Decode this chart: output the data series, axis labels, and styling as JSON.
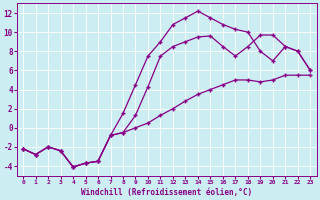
{
  "xlabel": "Windchill (Refroidissement éolien,°C)",
  "bg_color": "#cceef2",
  "grid_color": "#ffffff",
  "line_color": "#880088",
  "xlim": [
    -0.5,
    23.5
  ],
  "ylim": [
    -5,
    13
  ],
  "xticks": [
    0,
    1,
    2,
    3,
    4,
    5,
    6,
    7,
    8,
    9,
    10,
    11,
    12,
    13,
    14,
    15,
    16,
    17,
    18,
    19,
    20,
    21,
    22,
    23
  ],
  "yticks": [
    -4,
    -2,
    0,
    2,
    4,
    6,
    8,
    10,
    12
  ],
  "line1_x": [
    0,
    1,
    2,
    3,
    4,
    5,
    6,
    7,
    8,
    9,
    10,
    11,
    12,
    13,
    14,
    15,
    16,
    17,
    18,
    19,
    20,
    21,
    22,
    23
  ],
  "line1_y": [
    -2.2,
    -2.8,
    -2.0,
    -2.4,
    -4.1,
    -3.7,
    -3.5,
    -0.8,
    -0.5,
    1.3,
    4.3,
    7.5,
    8.5,
    9.0,
    9.5,
    9.6,
    8.5,
    7.5,
    8.5,
    9.7,
    9.7,
    8.5,
    8.0,
    6.0
  ],
  "line2_x": [
    0,
    1,
    2,
    3,
    4,
    5,
    6,
    7,
    8,
    9,
    10,
    11,
    12,
    13,
    14,
    15,
    16,
    17,
    18,
    19,
    20,
    21,
    22,
    23
  ],
  "line2_y": [
    -2.2,
    -2.8,
    -2.0,
    -2.4,
    -4.1,
    -3.7,
    -3.5,
    -0.8,
    1.5,
    4.5,
    7.5,
    9.0,
    10.8,
    11.5,
    12.2,
    11.5,
    10.8,
    10.3,
    10.0,
    8.0,
    7.0,
    8.5,
    8.0,
    6.0
  ],
  "line3_x": [
    0,
    1,
    2,
    3,
    4,
    5,
    6,
    7,
    8,
    9,
    10,
    11,
    12,
    13,
    14,
    15,
    16,
    17,
    18,
    19,
    20,
    21,
    22,
    23
  ],
  "line3_y": [
    -2.2,
    -2.8,
    -2.0,
    -2.4,
    -4.1,
    -3.7,
    -3.5,
    -0.8,
    -0.5,
    0.0,
    0.5,
    1.3,
    2.0,
    2.8,
    3.5,
    4.0,
    4.5,
    5.0,
    5.0,
    4.8,
    5.0,
    5.5,
    5.5,
    5.5
  ]
}
